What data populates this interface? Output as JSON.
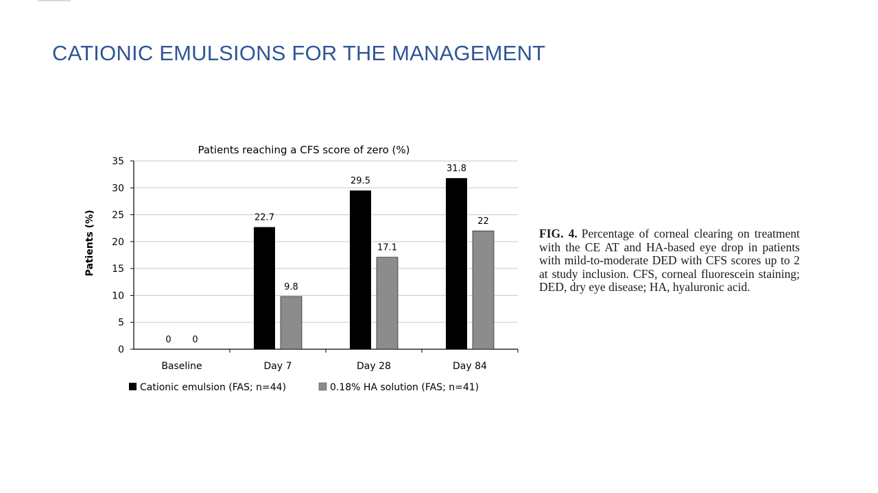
{
  "slide": {
    "title": "CATIONIC EMULSIONS FOR THE MANAGEMENT"
  },
  "caption": {
    "label": "FIG. 4.",
    "text": "Percentage of corneal clearing on treatment with the CE AT and HA-based eye drop in patients with mild-to-moderate DED with CFS scores up to 2 at study inclusion. CFS, corneal fluorescein staining; DED, dry eye disease; HA, hyaluronic acid."
  },
  "chart_data": {
    "type": "bar",
    "title": "Patients reaching a CFS score of zero (%)",
    "xlabel": "",
    "ylabel": "Patients (%)",
    "ylim": [
      0,
      35
    ],
    "yticks": [
      0,
      5,
      10,
      15,
      20,
      25,
      30,
      35
    ],
    "grid": true,
    "legend_position": "bottom",
    "categories": [
      "Baseline",
      "Day 7",
      "Day 28",
      "Day 84"
    ],
    "series": [
      {
        "name": "Cationic emulsion (FAS; n=44)",
        "color": "#000000",
        "values": [
          0,
          22.7,
          29.5,
          31.8
        ],
        "labels": [
          "0",
          "22.7",
          "29.5",
          "31.8"
        ]
      },
      {
        "name": "0.18% HA solution (FAS; n=41)",
        "color": "#8c8c8c",
        "values": [
          0,
          9.8,
          17.1,
          22
        ],
        "labels": [
          "0",
          "9.8",
          "17.1",
          "22"
        ]
      }
    ]
  }
}
